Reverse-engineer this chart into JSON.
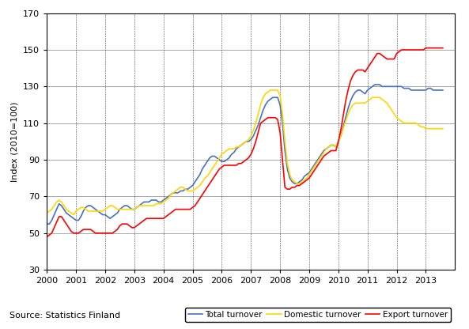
{
  "title": "",
  "ylabel": "Index (2010=100)",
  "source": "Source: Statistics Finland",
  "ylim": [
    30,
    170
  ],
  "yticks": [
    30,
    50,
    70,
    90,
    110,
    130,
    150,
    170
  ],
  "xlim_start": 2000.0,
  "xlim_end": 2014.0,
  "xtick_years": [
    2000,
    2001,
    2002,
    2003,
    2004,
    2005,
    2006,
    2007,
    2008,
    2009,
    2010,
    2011,
    2012,
    2013
  ],
  "legend_labels": [
    "Total turnover",
    "Domestic turnover",
    "Export turnover"
  ],
  "colors": {
    "total": "#4472C4",
    "domestic": "#FFD700",
    "export": "#FF0000"
  },
  "total_turnover": [
    55,
    55,
    57,
    60,
    63,
    66,
    65,
    63,
    61,
    60,
    59,
    58,
    57,
    57,
    59,
    62,
    64,
    65,
    65,
    64,
    63,
    62,
    61,
    60,
    60,
    59,
    58,
    59,
    60,
    61,
    63,
    64,
    65,
    65,
    64,
    63,
    63,
    64,
    65,
    66,
    67,
    67,
    67,
    68,
    68,
    68,
    67,
    67,
    68,
    69,
    70,
    71,
    72,
    72,
    72,
    73,
    73,
    74,
    74,
    75,
    76,
    78,
    80,
    82,
    85,
    87,
    89,
    91,
    92,
    92,
    91,
    90,
    89,
    89,
    90,
    91,
    93,
    94,
    96,
    97,
    98,
    99,
    100,
    100,
    101,
    103,
    106,
    109,
    113,
    117,
    120,
    122,
    123,
    124,
    124,
    124,
    120,
    110,
    95,
    85,
    80,
    78,
    77,
    77,
    78,
    79,
    81,
    82,
    83,
    85,
    87,
    89,
    91,
    93,
    95,
    96,
    97,
    98,
    98,
    97,
    100,
    103,
    108,
    113,
    118,
    122,
    125,
    127,
    128,
    128,
    127,
    126,
    128,
    129,
    130,
    131,
    131,
    131,
    130,
    130,
    130,
    130,
    130,
    130,
    130,
    130,
    130,
    129,
    129,
    129,
    128,
    128,
    128,
    128,
    128,
    128,
    128,
    129,
    129,
    128,
    128,
    128,
    128,
    128
  ],
  "domestic_turnover": [
    61,
    62,
    63,
    65,
    67,
    68,
    67,
    65,
    63,
    62,
    61,
    60,
    62,
    63,
    64,
    64,
    63,
    62,
    62,
    62,
    62,
    62,
    62,
    62,
    63,
    64,
    65,
    65,
    64,
    63,
    63,
    63,
    63,
    63,
    63,
    63,
    63,
    64,
    65,
    65,
    65,
    65,
    65,
    65,
    65,
    66,
    66,
    66,
    67,
    68,
    69,
    71,
    72,
    73,
    74,
    75,
    75,
    74,
    73,
    73,
    73,
    74,
    75,
    76,
    78,
    80,
    81,
    83,
    85,
    87,
    89,
    91,
    93,
    94,
    95,
    96,
    96,
    96,
    97,
    97,
    98,
    99,
    100,
    101,
    103,
    106,
    110,
    115,
    120,
    124,
    126,
    127,
    128,
    128,
    128,
    128,
    125,
    115,
    100,
    88,
    82,
    79,
    78,
    77,
    77,
    78,
    79,
    80,
    82,
    84,
    86,
    88,
    90,
    92,
    94,
    96,
    97,
    98,
    98,
    97,
    100,
    103,
    107,
    111,
    115,
    118,
    120,
    121,
    121,
    121,
    121,
    121,
    122,
    123,
    124,
    124,
    124,
    124,
    123,
    122,
    121,
    119,
    117,
    115,
    113,
    112,
    111,
    110,
    110,
    110,
    110,
    110,
    110,
    109,
    108,
    108,
    107,
    107,
    107,
    107,
    107,
    107,
    107,
    107
  ],
  "export_turnover": [
    48,
    49,
    50,
    53,
    56,
    59,
    59,
    57,
    55,
    53,
    51,
    50,
    50,
    50,
    51,
    52,
    52,
    52,
    52,
    51,
    50,
    50,
    50,
    50,
    50,
    50,
    50,
    50,
    51,
    52,
    54,
    55,
    55,
    55,
    54,
    53,
    53,
    54,
    55,
    56,
    57,
    58,
    58,
    58,
    58,
    58,
    58,
    58,
    58,
    59,
    60,
    61,
    62,
    63,
    63,
    63,
    63,
    63,
    63,
    63,
    64,
    65,
    67,
    69,
    71,
    73,
    75,
    77,
    79,
    81,
    83,
    85,
    86,
    87,
    87,
    87,
    87,
    87,
    87,
    88,
    88,
    89,
    90,
    91,
    93,
    96,
    100,
    105,
    110,
    111,
    112,
    113,
    113,
    113,
    113,
    112,
    105,
    90,
    75,
    74,
    74,
    75,
    75,
    76,
    76,
    77,
    78,
    79,
    80,
    82,
    84,
    86,
    88,
    90,
    92,
    93,
    94,
    95,
    95,
    95,
    100,
    106,
    114,
    122,
    128,
    133,
    136,
    138,
    139,
    139,
    139,
    138,
    140,
    142,
    144,
    146,
    148,
    148,
    147,
    146,
    145,
    145,
    145,
    145,
    148,
    149,
    150,
    150,
    150,
    150,
    150,
    150,
    150,
    150,
    150,
    150,
    151,
    151,
    151,
    151,
    151,
    151,
    151,
    151
  ]
}
